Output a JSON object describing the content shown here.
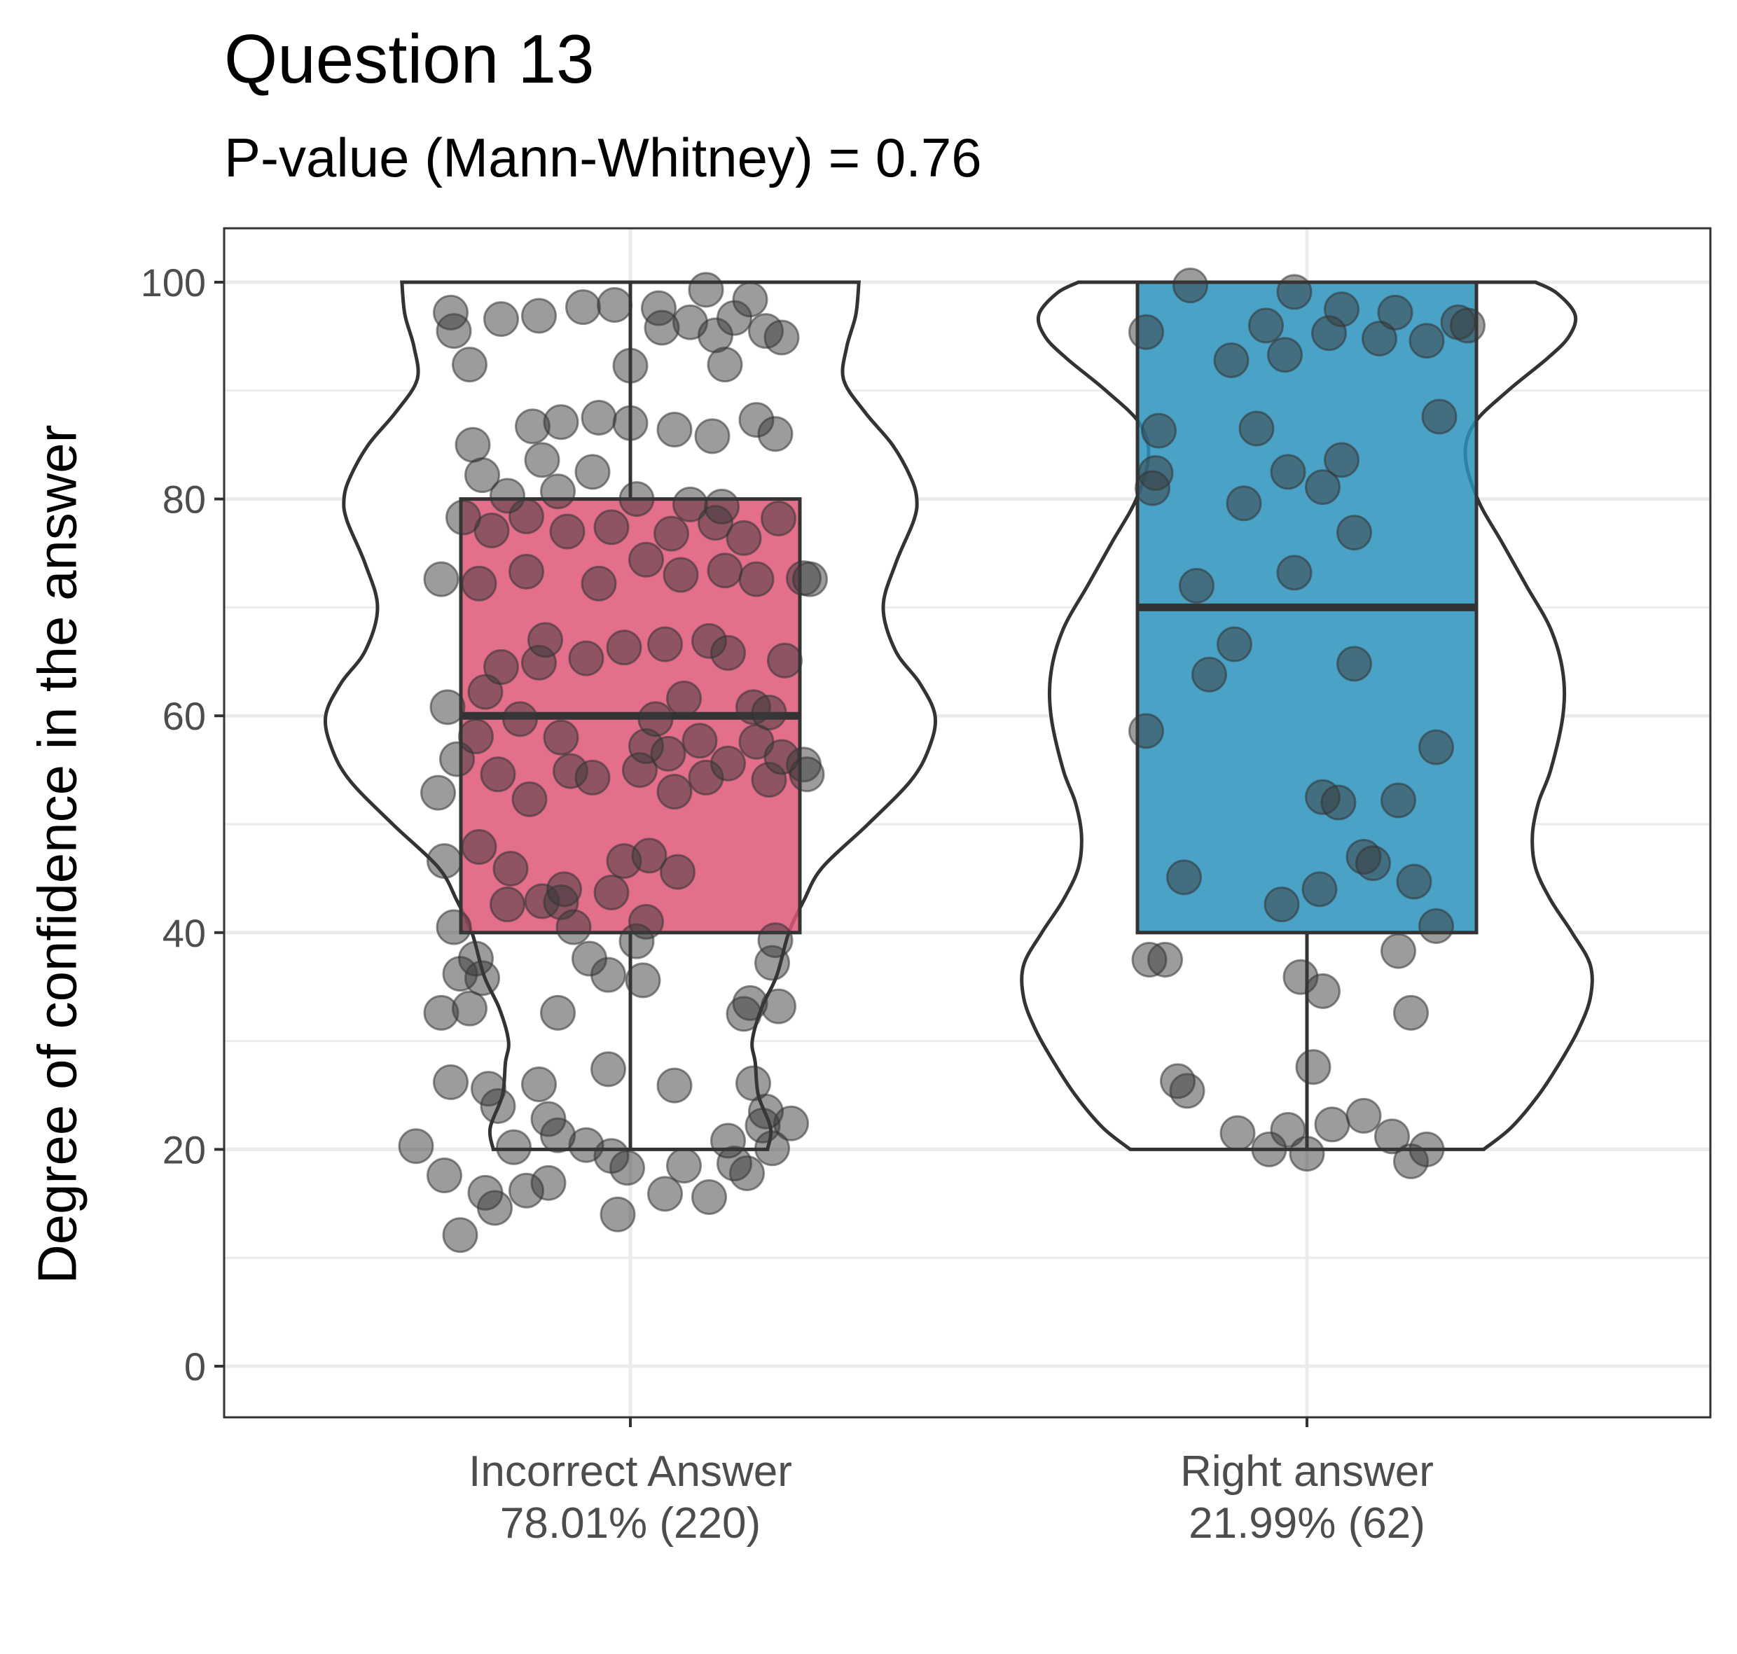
{
  "chart_data": {
    "type": "box",
    "title": "Question 13",
    "subtitle": "P-value (Mann-Whitney) = 0.76",
    "ylabel": "Degree of confidence in the answer",
    "xlabel": "",
    "ylim": [
      -5,
      105
    ],
    "yticks": [
      0,
      20,
      40,
      60,
      80,
      100
    ],
    "grid": true,
    "groups": [
      {
        "label_line1": "Incorrect Answer",
        "label_line2": "78.01% (220)",
        "fill": "#de5677",
        "box": {
          "min": 20,
          "q1": 40,
          "median": 60,
          "q3": 80,
          "max": 100
        },
        "violin_profile": [
          [
            20,
            0.45
          ],
          [
            22,
            0.46
          ],
          [
            25,
            0.42
          ],
          [
            28,
            0.41
          ],
          [
            30,
            0.4
          ],
          [
            33,
            0.43
          ],
          [
            36,
            0.48
          ],
          [
            40,
            0.52
          ],
          [
            43,
            0.57
          ],
          [
            46,
            0.63
          ],
          [
            50,
            0.78
          ],
          [
            54,
            0.92
          ],
          [
            57,
            0.98
          ],
          [
            60,
            1.0
          ],
          [
            63,
            0.95
          ],
          [
            66,
            0.87
          ],
          [
            70,
            0.83
          ],
          [
            74,
            0.87
          ],
          [
            78,
            0.93
          ],
          [
            80,
            0.94
          ],
          [
            82,
            0.92
          ],
          [
            85,
            0.86
          ],
          [
            88,
            0.77
          ],
          [
            91,
            0.7
          ],
          [
            94,
            0.71
          ],
          [
            97,
            0.74
          ],
          [
            100,
            0.75
          ]
        ],
        "points": [
          [
            -0.54,
            12.1
          ],
          [
            -0.43,
            14.6
          ],
          [
            -0.04,
            14.0
          ],
          [
            -0.26,
            16.9
          ],
          [
            -0.33,
            16.2
          ],
          [
            0.11,
            15.9
          ],
          [
            0.17,
            18.5
          ],
          [
            0.25,
            15.6
          ],
          [
            -0.46,
            16.0
          ],
          [
            -0.59,
            17.6
          ],
          [
            0.37,
            17.8
          ],
          [
            0.33,
            18.7
          ],
          [
            -0.01,
            18.3
          ],
          [
            -0.06,
            19.4
          ],
          [
            -0.68,
            20.3
          ],
          [
            -0.37,
            20.2
          ],
          [
            -0.14,
            20.4
          ],
          [
            0.31,
            20.8
          ],
          [
            0.42,
            22.2
          ],
          [
            0.51,
            22.4
          ],
          [
            -0.23,
            21.3
          ],
          [
            0.45,
            20.1
          ],
          [
            -0.26,
            22.8
          ],
          [
            0.43,
            23.5
          ],
          [
            -0.42,
            24.0
          ],
          [
            -0.45,
            25.6
          ],
          [
            -0.57,
            26.2
          ],
          [
            -0.07,
            27.4
          ],
          [
            0.14,
            25.9
          ],
          [
            0.39,
            26.1
          ],
          [
            -0.29,
            26.0
          ],
          [
            -0.6,
            32.6
          ],
          [
            -0.51,
            33.0
          ],
          [
            -0.23,
            32.6
          ],
          [
            0.36,
            32.5
          ],
          [
            0.47,
            33.2
          ],
          [
            0.38,
            33.5
          ],
          [
            -0.54,
            36.2
          ],
          [
            -0.07,
            36.1
          ],
          [
            0.04,
            35.6
          ],
          [
            -0.47,
            35.8
          ],
          [
            -0.49,
            37.6
          ],
          [
            -0.13,
            37.6
          ],
          [
            0.45,
            37.2
          ],
          [
            0.46,
            39.3
          ],
          [
            -0.56,
            40.5
          ],
          [
            0.02,
            39.2
          ],
          [
            0.05,
            41.0
          ],
          [
            -0.39,
            42.6
          ],
          [
            -0.28,
            42.9
          ],
          [
            -0.22,
            42.8
          ],
          [
            -0.06,
            43.7
          ],
          [
            -0.18,
            40.5
          ],
          [
            -0.59,
            46.6
          ],
          [
            -0.48,
            47.9
          ],
          [
            -0.02,
            46.6
          ],
          [
            0.06,
            47.1
          ],
          [
            0.15,
            45.6
          ],
          [
            -0.38,
            45.9
          ],
          [
            -0.21,
            44.0
          ],
          [
            -0.32,
            52.3
          ],
          [
            -0.61,
            52.9
          ],
          [
            -0.55,
            56.0
          ],
          [
            -0.42,
            54.6
          ],
          [
            -0.19,
            54.9
          ],
          [
            -0.12,
            54.3
          ],
          [
            0.03,
            55.0
          ],
          [
            0.14,
            53.0
          ],
          [
            0.24,
            54.3
          ],
          [
            0.31,
            55.6
          ],
          [
            0.44,
            54.1
          ],
          [
            0.55,
            55.5
          ],
          [
            0.56,
            54.6
          ],
          [
            -0.49,
            58.1
          ],
          [
            -0.22,
            58.0
          ],
          [
            0.05,
            57.2
          ],
          [
            0.12,
            56.5
          ],
          [
            0.22,
            57.7
          ],
          [
            0.4,
            57.6
          ],
          [
            0.48,
            56.2
          ],
          [
            -0.58,
            60.8
          ],
          [
            -0.46,
            62.2
          ],
          [
            -0.35,
            59.7
          ],
          [
            0.08,
            59.7
          ],
          [
            0.17,
            61.6
          ],
          [
            0.39,
            60.8
          ],
          [
            0.44,
            60.3
          ],
          [
            -0.41,
            64.5
          ],
          [
            -0.29,
            64.9
          ],
          [
            -0.14,
            65.3
          ],
          [
            -0.02,
            66.3
          ],
          [
            0.11,
            66.6
          ],
          [
            0.25,
            66.9
          ],
          [
            0.31,
            65.8
          ],
          [
            0.49,
            65.1
          ],
          [
            -0.27,
            67.0
          ],
          [
            -0.33,
            73.3
          ],
          [
            -0.6,
            72.6
          ],
          [
            -0.48,
            72.2
          ],
          [
            -0.1,
            72.2
          ],
          [
            0.05,
            74.4
          ],
          [
            0.16,
            73.0
          ],
          [
            0.3,
            73.4
          ],
          [
            0.4,
            72.6
          ],
          [
            0.55,
            72.7
          ],
          [
            0.57,
            72.6
          ],
          [
            -0.44,
            77.1
          ],
          [
            -0.33,
            78.4
          ],
          [
            -0.2,
            77.0
          ],
          [
            -0.06,
            77.4
          ],
          [
            0.13,
            76.8
          ],
          [
            0.27,
            77.8
          ],
          [
            0.36,
            76.4
          ],
          [
            0.47,
            78.2
          ],
          [
            -0.53,
            78.3
          ],
          [
            -0.39,
            80.3
          ],
          [
            -0.23,
            80.7
          ],
          [
            0.02,
            80.0
          ],
          [
            0.19,
            79.5
          ],
          [
            0.29,
            79.3
          ],
          [
            -0.47,
            82.2
          ],
          [
            -0.28,
            83.6
          ],
          [
            -0.12,
            82.5
          ],
          [
            -0.5,
            85.0
          ],
          [
            -0.31,
            86.7
          ],
          [
            -0.22,
            87.1
          ],
          [
            -0.1,
            87.5
          ],
          [
            0.0,
            87.0
          ],
          [
            0.14,
            86.4
          ],
          [
            0.26,
            85.8
          ],
          [
            0.4,
            87.3
          ],
          [
            0.46,
            86.0
          ],
          [
            -0.51,
            92.4
          ],
          [
            -0.56,
            95.5
          ],
          [
            -0.41,
            96.6
          ],
          [
            -0.29,
            96.9
          ],
          [
            -0.15,
            97.7
          ],
          [
            -0.05,
            97.9
          ],
          [
            0.09,
            97.6
          ],
          [
            0.19,
            96.3
          ],
          [
            0.27,
            95.1
          ],
          [
            0.33,
            96.7
          ],
          [
            0.43,
            95.5
          ],
          [
            0.48,
            94.9
          ],
          [
            -0.57,
            97.2
          ],
          [
            0.0,
            92.3
          ],
          [
            0.24,
            99.3
          ],
          [
            0.38,
            98.4
          ],
          [
            0.1,
            95.8
          ],
          [
            0.3,
            92.4
          ]
        ]
      },
      {
        "label_line1": "Right answer",
        "label_line2": "21.99% (62)",
        "fill": "#2a93bd",
        "box": {
          "min": 20,
          "q1": 40,
          "median": 70,
          "q3": 100,
          "max": 100
        },
        "violin_profile": [
          [
            20,
            0.58
          ],
          [
            22,
            0.67
          ],
          [
            25,
            0.76
          ],
          [
            28,
            0.83
          ],
          [
            31,
            0.89
          ],
          [
            34,
            0.93
          ],
          [
            37,
            0.93
          ],
          [
            40,
            0.87
          ],
          [
            43,
            0.8
          ],
          [
            46,
            0.75
          ],
          [
            49,
            0.74
          ],
          [
            52,
            0.76
          ],
          [
            55,
            0.8
          ],
          [
            60,
            0.84
          ],
          [
            64,
            0.84
          ],
          [
            68,
            0.8
          ],
          [
            72,
            0.72
          ],
          [
            76,
            0.64
          ],
          [
            80,
            0.56
          ],
          [
            84,
            0.52
          ],
          [
            87,
            0.55
          ],
          [
            90,
            0.66
          ],
          [
            93,
            0.79
          ],
          [
            95,
            0.86
          ],
          [
            97,
            0.88
          ],
          [
            99,
            0.82
          ],
          [
            100,
            0.75
          ]
        ],
        "points": [
          [
            -0.37,
            99.7
          ],
          [
            -0.04,
            99.1
          ],
          [
            0.11,
            97.5
          ],
          [
            0.28,
            97.2
          ],
          [
            0.48,
            96.3
          ],
          [
            0.51,
            96.0
          ],
          [
            -0.51,
            95.4
          ],
          [
            -0.13,
            96.0
          ],
          [
            0.07,
            95.3
          ],
          [
            0.23,
            94.8
          ],
          [
            -0.24,
            92.8
          ],
          [
            -0.07,
            93.3
          ],
          [
            0.38,
            94.6
          ],
          [
            -0.47,
            86.3
          ],
          [
            -0.16,
            86.5
          ],
          [
            0.42,
            87.6
          ],
          [
            -0.48,
            82.4
          ],
          [
            -0.06,
            82.5
          ],
          [
            0.11,
            83.6
          ],
          [
            -0.2,
            79.6
          ],
          [
            0.05,
            81.1
          ],
          [
            0.15,
            76.9
          ],
          [
            -0.49,
            81.0
          ],
          [
            -0.04,
            73.2
          ],
          [
            -0.35,
            72.0
          ],
          [
            -0.23,
            66.6
          ],
          [
            -0.31,
            63.8
          ],
          [
            0.15,
            64.8
          ],
          [
            0.41,
            57.1
          ],
          [
            -0.51,
            58.6
          ],
          [
            0.05,
            52.5
          ],
          [
            0.1,
            52.0
          ],
          [
            0.29,
            52.2
          ],
          [
            0.18,
            47.0
          ],
          [
            0.21,
            46.4
          ],
          [
            -0.39,
            45.1
          ],
          [
            -0.08,
            42.6
          ],
          [
            0.04,
            44.0
          ],
          [
            0.34,
            44.7
          ],
          [
            0.41,
            40.6
          ],
          [
            -0.45,
            37.5
          ],
          [
            -0.5,
            37.5
          ],
          [
            0.29,
            38.3
          ],
          [
            -0.02,
            35.9
          ],
          [
            0.05,
            34.6
          ],
          [
            0.33,
            32.6
          ],
          [
            -0.38,
            25.4
          ],
          [
            0.02,
            27.6
          ],
          [
            -0.41,
            26.3
          ],
          [
            -0.06,
            21.8
          ],
          [
            0.08,
            22.3
          ],
          [
            0.27,
            21.2
          ],
          [
            0.18,
            23.1
          ],
          [
            -0.12,
            20.0
          ],
          [
            0.0,
            19.6
          ],
          [
            0.33,
            18.9
          ],
          [
            -0.22,
            21.5
          ],
          [
            0.38,
            20.0
          ]
        ]
      }
    ]
  }
}
